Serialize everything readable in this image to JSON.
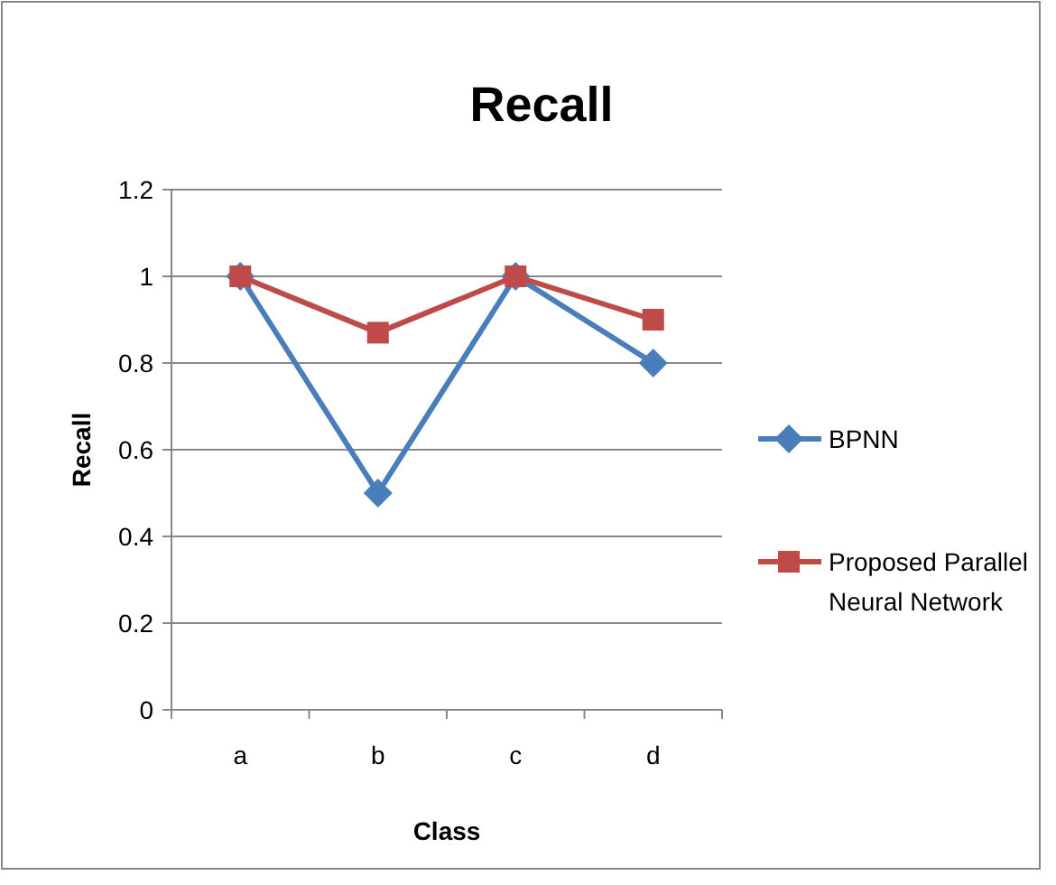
{
  "chart_data": {
    "type": "line",
    "title": "Recall",
    "xlabel": "Class",
    "ylabel": "Recall",
    "categories": [
      "a",
      "b",
      "c",
      "d"
    ],
    "series": [
      {
        "name": "BPNN",
        "color": "#4a7ebb",
        "marker": "diamond",
        "values": [
          1,
          0.5,
          1,
          0.8
        ]
      },
      {
        "name": "Proposed Parallel Neural Network",
        "color": "#be4b48",
        "marker": "square",
        "values": [
          1,
          0.87,
          1,
          0.9
        ]
      }
    ],
    "ylim": [
      0,
      1.2
    ],
    "yticks": [
      0,
      {
        "value": 0.2,
        "label": "0.2"
      },
      {
        "value": 0.4,
        "label": "0.4"
      },
      {
        "value": 0.6,
        "label": "0.6"
      },
      {
        "value": 0.8,
        "label": "0.8"
      },
      1,
      {
        "value": 1.2,
        "label": "1.2"
      }
    ],
    "grid": "y",
    "legend": "right"
  }
}
